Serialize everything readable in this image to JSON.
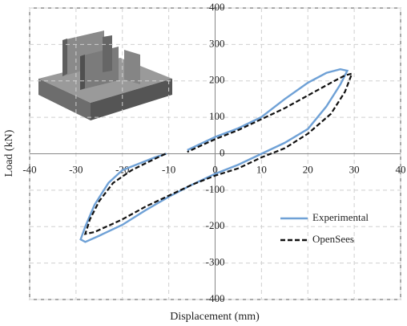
{
  "chart_data": {
    "type": "line",
    "xlabel": "Displacement (mm)",
    "ylabel": "Load (kN)",
    "xlim": [
      -40,
      40
    ],
    "xticks": [
      -40,
      -30,
      -20,
      -10,
      0,
      10,
      20,
      30,
      40
    ],
    "ylim": [
      -400,
      400
    ],
    "yticks": [
      -400,
      -300,
      -200,
      -100,
      0,
      100,
      200,
      300,
      400
    ],
    "grid": true,
    "legend": "lower right",
    "series": [
      {
        "name": "Experimental",
        "color": "#6fa1d6",
        "dash": "solid",
        "x": [
          -10.5,
          -13,
          -17,
          -20,
          -23,
          -26,
          -28,
          -29,
          -28,
          -25,
          -20,
          -15,
          -10,
          -5,
          0,
          5,
          10,
          15,
          20,
          24,
          27,
          28.5,
          27,
          24,
          20,
          15,
          10,
          5,
          0,
          -6
        ],
        "values": [
          0,
          -10,
          -30,
          -45,
          -80,
          -140,
          -200,
          -235,
          -242,
          -225,
          -195,
          -155,
          -118,
          -85,
          -55,
          -30,
          0,
          30,
          68,
          130,
          190,
          228,
          232,
          222,
          195,
          150,
          101,
          70,
          46,
          10
        ]
      },
      {
        "name": "OpenSees",
        "color": "#111111",
        "dash": "dashed",
        "x": [
          -10.7,
          -14,
          -18,
          -22,
          -25,
          -27,
          -28,
          -26,
          -20,
          -15,
          -10,
          -5,
          0,
          5,
          10,
          15,
          20,
          25,
          28,
          29.5,
          28,
          25,
          20,
          15,
          10,
          5,
          0,
          -6
        ],
        "values": [
          0,
          -20,
          -45,
          -80,
          -130,
          -180,
          -220,
          -215,
          -180,
          -145,
          -115,
          -85,
          -60,
          -40,
          -10,
          15,
          55,
          110,
          170,
          220,
          215,
          195,
          160,
          125,
          95,
          65,
          40,
          5
        ]
      }
    ]
  }
}
